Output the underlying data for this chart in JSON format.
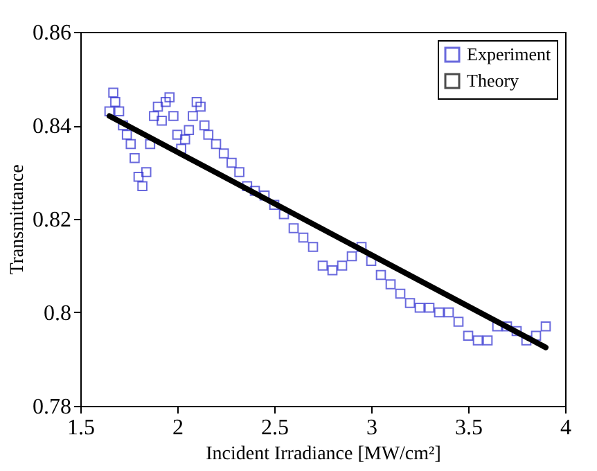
{
  "chart_data": {
    "type": "scatter",
    "xlabel": "Incident Irradiance [MW/cm²]",
    "ylabel": "Transmittance",
    "xlim": [
      1.5,
      4
    ],
    "xticks": [
      1.5,
      2,
      2.5,
      3,
      3.5,
      4
    ],
    "ylim": [
      0.78,
      0.86
    ],
    "yticks": [
      0.78,
      0.8,
      0.82,
      0.84,
      0.86
    ],
    "grid": false,
    "legend": "top right",
    "series": [
      {
        "name": "Experiment",
        "type": "scatter",
        "marker": "square",
        "color": "#2b2bd0",
        "x": [
          1.65,
          1.67,
          1.68,
          1.7,
          1.72,
          1.74,
          1.76,
          1.78,
          1.8,
          1.82,
          1.84,
          1.86,
          1.88,
          1.9,
          1.92,
          1.94,
          1.96,
          1.98,
          2,
          2.02,
          2.04,
          2.06,
          2.08,
          2.1,
          2.12,
          2.14,
          2.16,
          2.2,
          2.24,
          2.28,
          2.32,
          2.36,
          2.4,
          2.45,
          2.5,
          2.55,
          2.6,
          2.65,
          2.7,
          2.75,
          2.8,
          2.85,
          2.9,
          2.95,
          3,
          3.05,
          3.1,
          3.15,
          3.2,
          3.25,
          3.3,
          3.35,
          3.4,
          3.45,
          3.5,
          3.55,
          3.6,
          3.65,
          3.7,
          3.75,
          3.8,
          3.85,
          3.9
        ],
        "values": [
          0.843,
          0.847,
          0.845,
          0.843,
          0.84,
          0.838,
          0.836,
          0.833,
          0.829,
          0.827,
          0.83,
          0.836,
          0.842,
          0.844,
          0.841,
          0.845,
          0.846,
          0.842,
          0.838,
          0.835,
          0.837,
          0.839,
          0.842,
          0.845,
          0.844,
          0.84,
          0.838,
          0.836,
          0.834,
          0.832,
          0.83,
          0.827,
          0.826,
          0.825,
          0.823,
          0.821,
          0.818,
          0.816,
          0.814,
          0.81,
          0.809,
          0.81,
          0.812,
          0.814,
          0.811,
          0.808,
          0.806,
          0.804,
          0.802,
          0.801,
          0.801,
          0.8,
          0.8,
          0.798,
          0.795,
          0.794,
          0.794,
          0.797,
          0.797,
          0.796,
          0.794,
          0.795,
          0.797
        ]
      },
      {
        "name": "Theory",
        "type": "line",
        "line_style": "solid",
        "color": "#000000",
        "x": [
          1.65,
          3.9
        ],
        "values": [
          0.842,
          0.7925
        ]
      }
    ]
  }
}
